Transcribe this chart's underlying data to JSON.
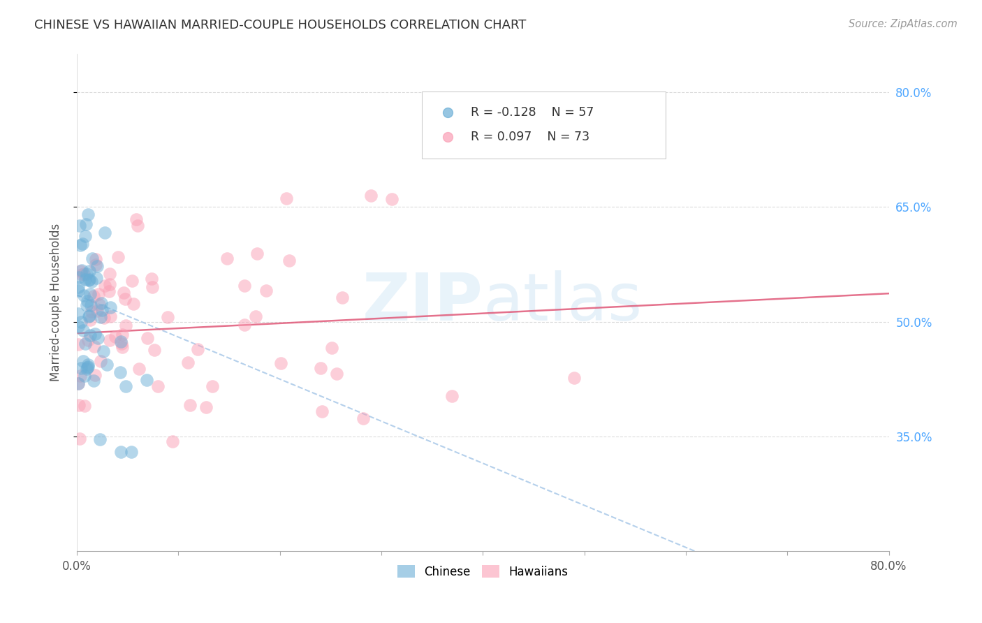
{
  "title": "CHINESE VS HAWAIIAN MARRIED-COUPLE HOUSEHOLDS CORRELATION CHART",
  "source": "Source: ZipAtlas.com",
  "ylabel": "Married-couple Households",
  "xlim": [
    0.0,
    0.8
  ],
  "ylim": [
    0.2,
    0.85
  ],
  "yticks": [
    0.35,
    0.5,
    0.65,
    0.8
  ],
  "ytick_labels": [
    "35.0%",
    "50.0%",
    "65.0%",
    "80.0%"
  ],
  "xtick_pos": [
    0.0,
    0.1,
    0.2,
    0.3,
    0.4,
    0.5,
    0.6,
    0.7,
    0.8
  ],
  "xtick_labels": [
    "0.0%",
    "",
    "",
    "",
    "",
    "",
    "",
    "",
    "80.0%"
  ],
  "watermark": "ZIPatlas",
  "legend_R_chinese": "R = -0.128",
  "legend_N_chinese": "N = 57",
  "legend_R_hawaiian": "R = 0.097",
  "legend_N_hawaiian": "N = 73",
  "chinese_color": "#6baed6",
  "hawaiian_color": "#fa9fb5",
  "trend_chinese_color": "#5b9bd5",
  "trend_hawaiian_color": "#e05878",
  "background_color": "#ffffff",
  "grid_color": "#cccccc",
  "title_color": "#333333",
  "right_ytick_color": "#4da6ff"
}
